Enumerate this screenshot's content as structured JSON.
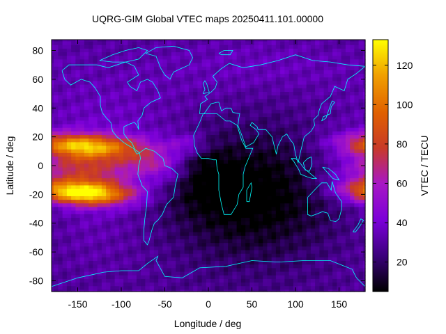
{
  "chart_data": {
    "type": "heatmap",
    "title": "UQRG-GIM Global VTEC maps 20250411.101.00000",
    "xlabel": "Longitude / deg",
    "ylabel": "Latitude / deg",
    "colorbar_label": "VTEC / TECU",
    "xlim": [
      -180,
      180
    ],
    "ylim": [
      -87.5,
      87.5
    ],
    "zlim": [
      5,
      133
    ],
    "x_ticks": [
      -150,
      -100,
      -50,
      0,
      50,
      100,
      150
    ],
    "y_ticks": [
      -80,
      -60,
      -40,
      -20,
      0,
      20,
      40,
      60,
      80
    ],
    "colorbar_ticks": [
      20,
      40,
      60,
      80,
      100,
      120
    ],
    "colormap": [
      "#000000",
      "#3a007a",
      "#7a00d8",
      "#a818c4",
      "#c83a28",
      "#e06000",
      "#f0a000",
      "#ffff00"
    ],
    "coastline_color": "#00ffff",
    "grid": false,
    "grid_resolution": {
      "dlon": 5,
      "dlat": 2.5
    },
    "features": [
      {
        "desc": "equatorial ionization anomaly, southern crest",
        "lon": -145,
        "lat": -18,
        "value": 132
      },
      {
        "desc": "equatorial ionization anomaly, northern crest",
        "lon": -145,
        "lat": 15,
        "value": 112
      },
      {
        "desc": "anomaly crest near dateline east",
        "lon": 178,
        "lat": -10,
        "value": 100
      },
      {
        "desc": "anomaly crest near dateline east north",
        "lon": 178,
        "lat": 15,
        "value": 78
      },
      {
        "desc": "night-side minimum",
        "lon": 40,
        "lat": -20,
        "value": 12
      }
    ]
  }
}
